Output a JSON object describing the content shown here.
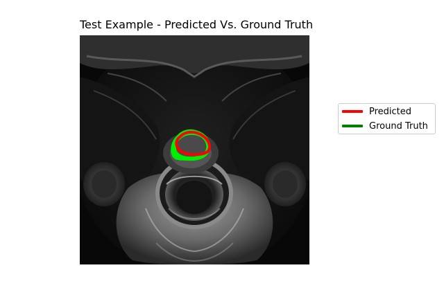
{
  "figure": {
    "title": "Test Example - Predicted Vs. Ground Truth"
  },
  "image": {
    "description_type": "axial prostate MRI slice with contour overlays"
  },
  "legend": {
    "items": [
      {
        "label": "Predicted",
        "color": "#ff0000",
        "icon": "line-swatch"
      },
      {
        "label": "Ground Truth",
        "color": "#008000",
        "icon": "line-swatch"
      }
    ]
  },
  "colors": {
    "predicted_contour": "#ff0000",
    "ground_truth_fill": "#00ee00",
    "background": "#ffffff"
  }
}
